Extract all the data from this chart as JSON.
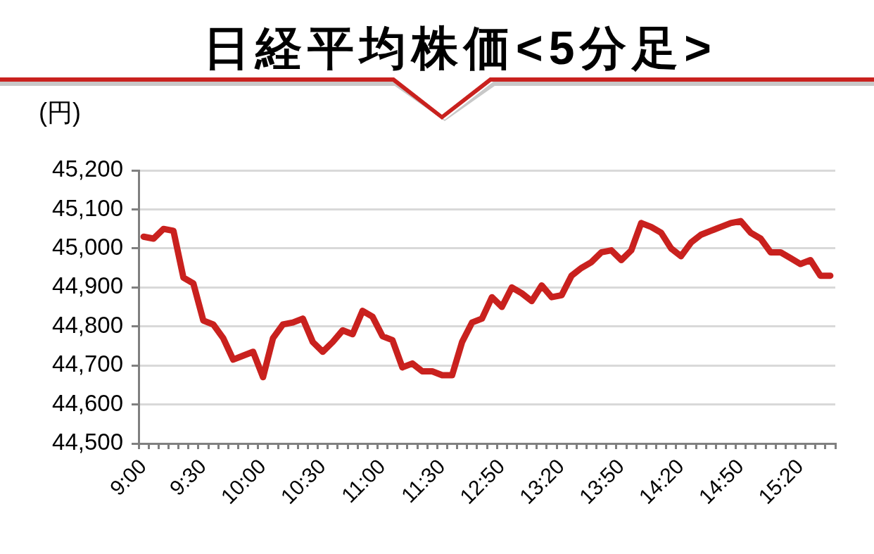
{
  "chart_data": {
    "type": "line",
    "title": "日経平均株価<5分足>",
    "ylabel": "(円)",
    "categories": [
      "9:00",
      null,
      null,
      null,
      null,
      null,
      "9:30",
      null,
      null,
      null,
      null,
      null,
      "10:00",
      null,
      null,
      null,
      null,
      null,
      "10:30",
      null,
      null,
      null,
      null,
      null,
      "11:00",
      null,
      null,
      null,
      null,
      null,
      "11:30",
      null,
      null,
      null,
      null,
      null,
      "12:50",
      null,
      null,
      null,
      null,
      null,
      "13:20",
      null,
      null,
      null,
      null,
      null,
      "13:50",
      null,
      null,
      null,
      null,
      null,
      "14:20",
      null,
      null,
      null,
      null,
      null,
      "14:50",
      null,
      null,
      null,
      null,
      null,
      "15:20",
      null,
      null,
      null
    ],
    "values": [
      45030,
      45025,
      45050,
      45045,
      44925,
      44910,
      44815,
      44805,
      44770,
      44715,
      44725,
      44735,
      44670,
      44770,
      44805,
      44810,
      44820,
      44760,
      44735,
      44760,
      44790,
      44780,
      44840,
      44825,
      44775,
      44765,
      44695,
      44705,
      44685,
      44685,
      44675,
      44675,
      44760,
      44810,
      44820,
      44875,
      44850,
      44900,
      44885,
      44865,
      44905,
      44875,
      44880,
      44930,
      44950,
      44965,
      44990,
      44995,
      44970,
      44995,
      45065,
      45055,
      45040,
      45000,
      44980,
      45015,
      45035,
      45045,
      45055,
      45065,
      45070,
      45040,
      45025,
      44990,
      44990,
      44975,
      44960,
      44970,
      44930,
      44930
    ],
    "color": "#c9211e",
    "ylim": [
      44500,
      45200
    ],
    "yticks": [
      {
        "value": 44500,
        "label": "44,500"
      },
      {
        "value": 44600,
        "label": "44,600"
      },
      {
        "value": 44700,
        "label": "44,700"
      },
      {
        "value": 44800,
        "label": "44,800"
      },
      {
        "value": 44900,
        "label": "44,900"
      },
      {
        "value": 45000,
        "label": "45,000"
      },
      {
        "value": 45100,
        "label": "45,100"
      },
      {
        "value": 45200,
        "label": "45,200"
      }
    ],
    "grid": "y",
    "legend": false
  }
}
